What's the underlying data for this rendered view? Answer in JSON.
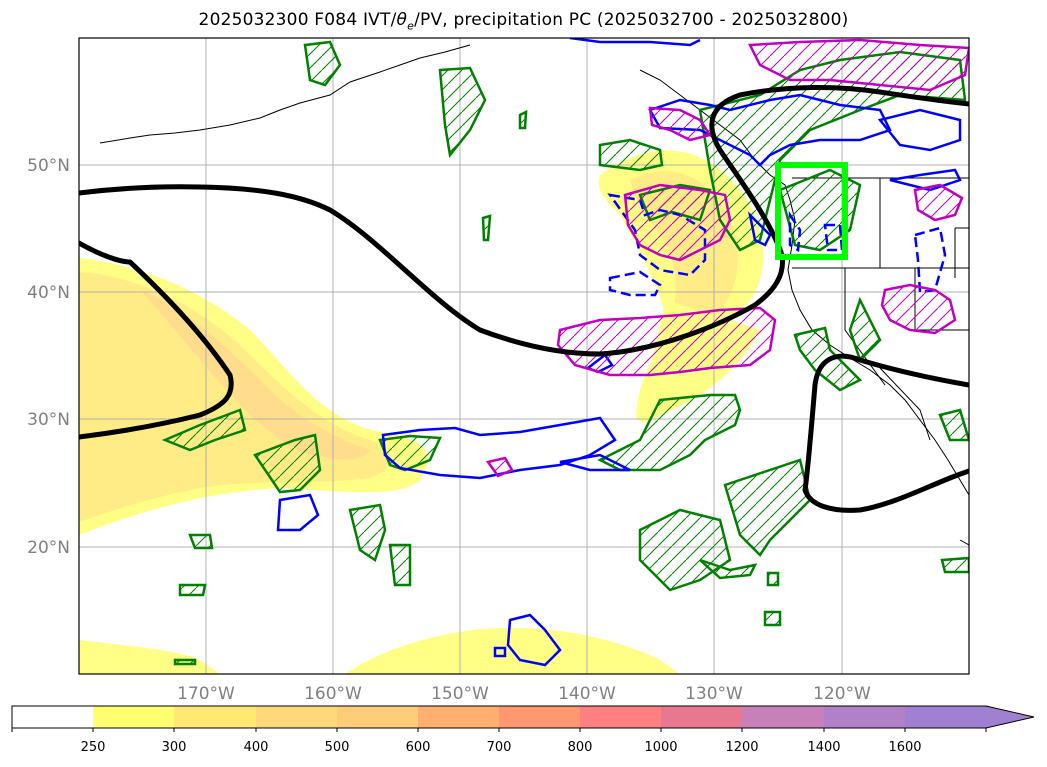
{
  "title": {
    "prefix": "2025032300 F084 IVT/",
    "theta": "θ",
    "theta_sub": "e",
    "suffix": "/PV, precipitation PC (2025032700 - 2025032800)"
  },
  "map": {
    "lat_labels": [
      "50°N",
      "40°N",
      "30°N",
      "20°N"
    ],
    "lon_labels": [
      "170°W",
      "160°W",
      "150°W",
      "140°W",
      "130°W",
      "120°W"
    ],
    "highlight_box_color": "#00ff00",
    "colors": {
      "geopotential": "#000000",
      "precip_contour_green": "#008000",
      "theta_contour_blue": "#0000ff",
      "pv_contour_magenta": "#c000c0",
      "ivt_fill_low": "#ffff66",
      "ivt_fill_mid": "#ffd98a"
    }
  },
  "colorbar": {
    "ticks": [
      "250",
      "300",
      "400",
      "500",
      "600",
      "700",
      "800",
      "1000",
      "1200",
      "1400",
      "1600"
    ],
    "colors": [
      "#ffffff",
      "#ffff70",
      "#ffe972",
      "#ffd87a",
      "#ffcd7a",
      "#ffb070",
      "#ff9870",
      "#ff8080",
      "#e87890",
      "#c880b8",
      "#b080c8",
      "#a080d0"
    ]
  }
}
